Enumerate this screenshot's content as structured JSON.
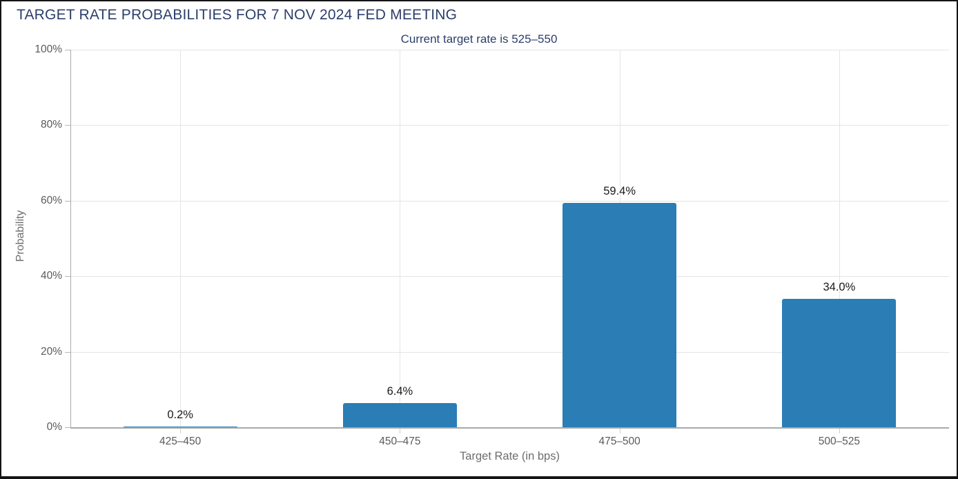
{
  "chart_data": {
    "type": "bar",
    "title": "TARGET RATE PROBABILITIES FOR 7 NOV 2024 FED MEETING",
    "subtitle": "Current target rate is 525–550",
    "xlabel": "Target Rate (in bps)",
    "ylabel": "Probability",
    "categories": [
      "425–450",
      "450–475",
      "475–500",
      "500–525"
    ],
    "values": [
      0.2,
      6.4,
      59.4,
      34.0
    ],
    "value_labels": [
      "0.2%",
      "6.4%",
      "59.4%",
      "34.0%"
    ],
    "ylim": [
      0,
      100
    ],
    "yticks": [
      {
        "value": 0,
        "label": "0%"
      },
      {
        "value": 20,
        "label": "20%"
      },
      {
        "value": 40,
        "label": "40%"
      },
      {
        "value": 60,
        "label": "60%"
      },
      {
        "value": 80,
        "label": "80%"
      },
      {
        "value": 100,
        "label": "100%"
      }
    ],
    "grid": true,
    "legend": "none"
  },
  "colors": {
    "bar": "#2a7db5",
    "title_text": "#2b3e6b",
    "tick_label": "#5a5a5a",
    "axis_title": "#6d6d6d",
    "gridline": "#e4e4e4",
    "axis_line": "#a9a9a9",
    "data_label": "#1a1a1a",
    "border": "#141414",
    "background": "#ffffff"
  }
}
